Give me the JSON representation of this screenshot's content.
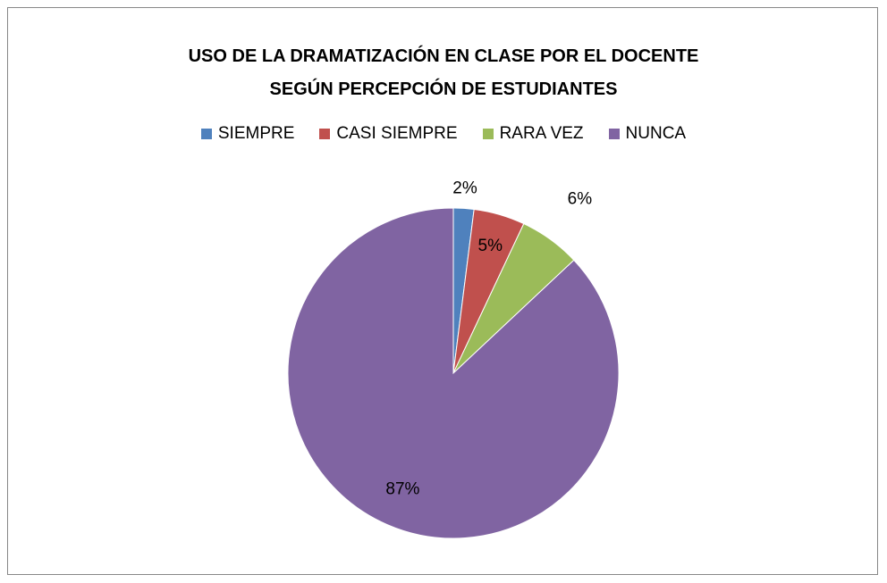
{
  "chart_data": {
    "type": "pie",
    "title": "USO DE LA DRAMATIZACIÓN EN CLASE POR EL DOCENTE SEGÚN PERCEPCIÓN DE ESTUDIANTES",
    "categories": [
      "SIEMPRE",
      "CASI SIEMPRE",
      "RARA VEZ",
      "NUNCA"
    ],
    "values": [
      2,
      5,
      6,
      87
    ],
    "value_labels": [
      "2%",
      "5%",
      "6%",
      "87%"
    ],
    "colors": [
      "#4f81bd",
      "#c0504d",
      "#9bbb59",
      "#8064a2"
    ],
    "legend": "top"
  }
}
